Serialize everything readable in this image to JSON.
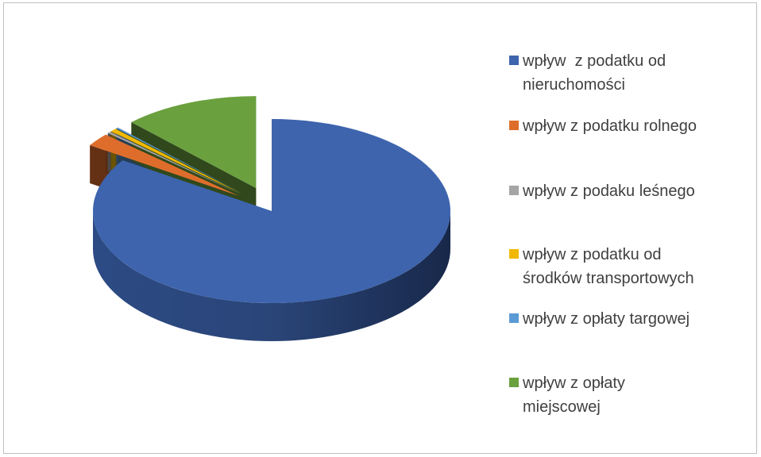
{
  "chart_data": {
    "type": "pie",
    "title": "",
    "legend_position": "right",
    "slices": [
      {
        "label": "wpływ  z podatku od\nnieruchomości",
        "value": 84.3,
        "color": "#3d64ad"
      },
      {
        "label": "wpływ z podatku rolnego",
        "value": 2.3,
        "color": "#de6d2c"
      },
      {
        "label": "wpływ z podaku leśnego",
        "value": 0.3,
        "color": "#a5a5a5"
      },
      {
        "label": "wpływ z podatku od\nśrodków transportowych",
        "value": 0.6,
        "color": "#f0b800"
      },
      {
        "label": "wpływ z opłaty targowej",
        "value": 0.2,
        "color": "#5b9bd5"
      },
      {
        "label": "wpływ z opłaty\nmiejscowej",
        "value": 12.3,
        "color": "#6aa03e"
      }
    ]
  }
}
